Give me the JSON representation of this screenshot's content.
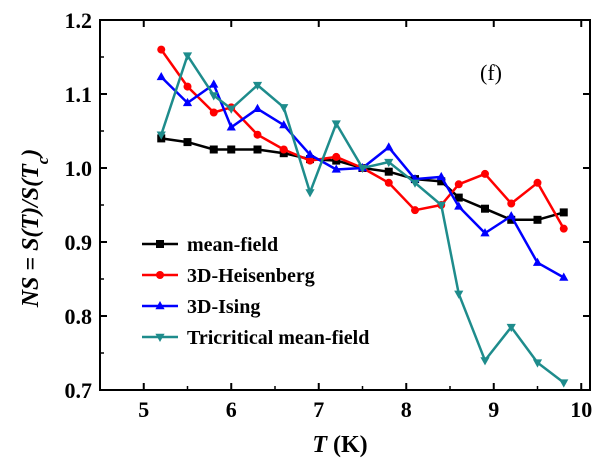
{
  "chart_data": {
    "type": "line",
    "annotation": "(f)",
    "xlabel": {
      "italic": "T",
      "normal": " (K)"
    },
    "ylabel": "NS = S(T)/S(Tc)",
    "xlim": [
      4.5,
      10.1
    ],
    "ylim": [
      0.7,
      1.2
    ],
    "xticks": [
      5,
      6,
      7,
      8,
      9,
      10
    ],
    "yticks": [
      0.7,
      0.8,
      0.9,
      1.0,
      1.1,
      1.2
    ],
    "ytick_labels": [
      "0.7",
      "0.8",
      "0.9",
      "1.0",
      "1.1",
      "1.2"
    ],
    "grid": false,
    "legend_position": "lower-left",
    "series": [
      {
        "name": "mean-field",
        "color": "#000000",
        "marker": "square",
        "x": [
          5.2,
          5.5,
          5.8,
          6.0,
          6.3,
          6.6,
          6.9,
          7.2,
          7.5,
          7.8,
          8.1,
          8.4,
          8.6,
          8.9,
          9.2,
          9.5,
          9.8
        ],
        "y": [
          1.04,
          1.035,
          1.025,
          1.025,
          1.025,
          1.02,
          1.012,
          1.01,
          1.0,
          0.995,
          0.985,
          0.982,
          0.96,
          0.945,
          0.93,
          0.93,
          0.94
        ]
      },
      {
        "name": "3D-Heisenberg",
        "color": "#ff0000",
        "marker": "circle",
        "x": [
          5.2,
          5.5,
          5.8,
          6.0,
          6.3,
          6.6,
          6.9,
          7.2,
          7.5,
          7.8,
          8.1,
          8.4,
          8.6,
          8.9,
          9.2,
          9.5,
          9.8
        ],
        "y": [
          1.16,
          1.11,
          1.075,
          1.082,
          1.045,
          1.025,
          1.01,
          1.015,
          1.0,
          0.98,
          0.943,
          0.95,
          0.978,
          0.992,
          0.952,
          0.98,
          0.918
        ]
      },
      {
        "name": "3D-Ising",
        "color": "#0000ff",
        "marker": "triangle-up",
        "x": [
          5.2,
          5.5,
          5.8,
          6.0,
          6.3,
          6.6,
          6.9,
          7.2,
          7.5,
          7.8,
          8.1,
          8.4,
          8.6,
          8.9,
          9.2,
          9.5,
          9.8
        ],
        "y": [
          1.123,
          1.088,
          1.113,
          1.055,
          1.08,
          1.058,
          1.018,
          0.998,
          1.0,
          1.028,
          0.985,
          0.988,
          0.948,
          0.912,
          0.935,
          0.872,
          0.852
        ]
      },
      {
        "name": "Tricritical mean-field",
        "color": "#1e8c8c",
        "marker": "triangle-down",
        "x": [
          5.2,
          5.5,
          5.8,
          6.0,
          6.3,
          6.6,
          6.9,
          7.2,
          7.5,
          7.8,
          8.1,
          8.4,
          8.6,
          8.9,
          9.2,
          9.5,
          9.8
        ],
        "y": [
          1.045,
          1.152,
          1.098,
          1.08,
          1.112,
          1.082,
          0.967,
          1.06,
          1.0,
          1.008,
          0.98,
          0.95,
          0.83,
          0.74,
          0.785,
          0.737,
          0.71
        ]
      }
    ]
  }
}
